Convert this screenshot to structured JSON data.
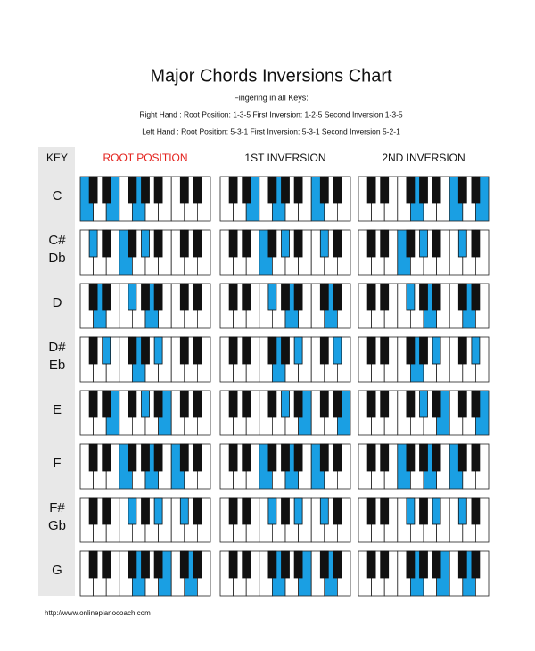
{
  "header": {
    "title": "Major Chords Inversions Chart",
    "subtitle": "Fingering in all Keys:",
    "right_hand": "Right Hand : Root Position: 1-3-5 First Inversion: 1-2-5 Second Inversion 1-3-5",
    "left_hand": "Left Hand : Root Position: 5-3-1 First Inversion: 5-3-1 Second Inversion 5-2-1"
  },
  "table": {
    "key_header": "KEY",
    "columns": [
      "ROOT POSITION",
      "1ST INVERSION",
      "2ND INVERSION"
    ],
    "keys": [
      [
        "C"
      ],
      [
        "C#",
        "Db"
      ],
      [
        "D"
      ],
      [
        "D#",
        "Eb"
      ],
      [
        "E"
      ],
      [
        "F"
      ],
      [
        "F#",
        "Gb"
      ],
      [
        "G"
      ]
    ]
  },
  "footer": "http://www.onlinepianocoach.com"
}
